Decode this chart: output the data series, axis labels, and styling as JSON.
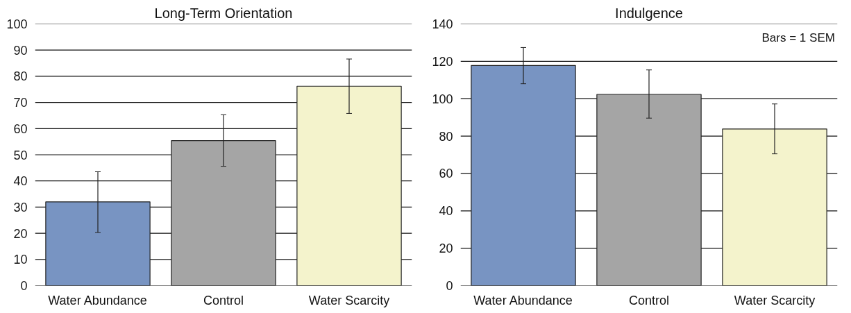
{
  "chart_data": [
    {
      "type": "bar",
      "title": "Long-Term Orientation",
      "categories": [
        "Water Abundance",
        "Control",
        "Water Scarcity"
      ],
      "values": [
        32,
        55.4,
        76.2
      ],
      "colors": [
        "#7894c2",
        "#a5a5a5",
        "#f4f3cc"
      ],
      "errors": [
        [
          20.3,
          43.5
        ],
        [
          45.6,
          65.3
        ],
        [
          65.8,
          86.6
        ]
      ],
      "ylim": [
        0,
        100
      ],
      "yticks": [
        0,
        10,
        20,
        30,
        40,
        50,
        60,
        70,
        80,
        90,
        100
      ],
      "grid": "y"
    },
    {
      "type": "bar",
      "title": "Indulgence",
      "categories": [
        "Water Abundance",
        "Control",
        "Water Scarcity"
      ],
      "values": [
        117.8,
        102.3,
        83.8
      ],
      "colors": [
        "#7894c2",
        "#a5a5a5",
        "#f4f3cc"
      ],
      "errors": [
        [
          108,
          127.4
        ],
        [
          89.6,
          115.4
        ],
        [
          70.5,
          97.2
        ]
      ],
      "ylim": [
        0,
        140
      ],
      "yticks": [
        0,
        20,
        40,
        60,
        80,
        100,
        120,
        140
      ],
      "grid": "y",
      "annotations": [
        "Bars = 1 SEM"
      ]
    }
  ]
}
